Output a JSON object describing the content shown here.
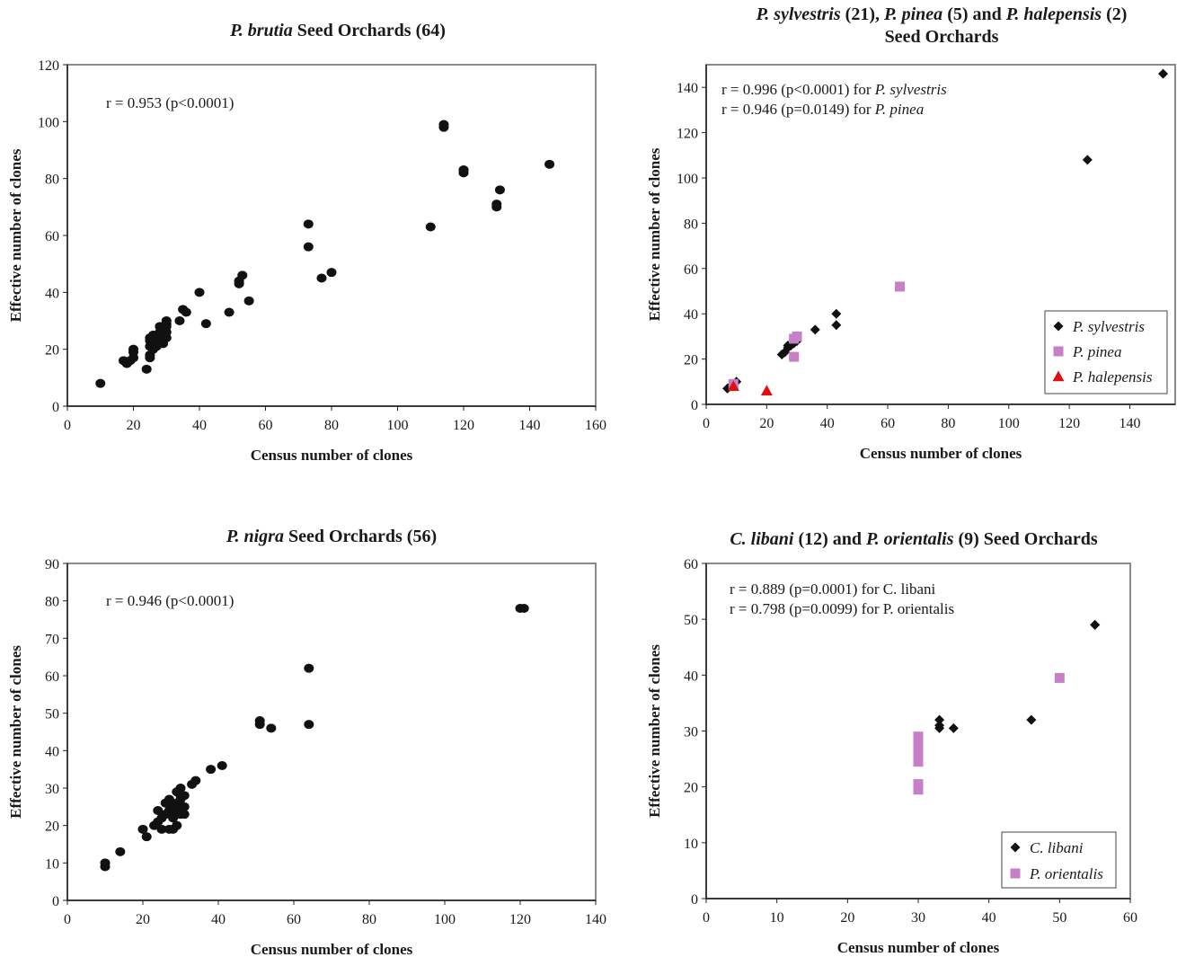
{
  "chart_data": [
    {
      "type": "scatter",
      "title_parts": [
        {
          "text": "P. brutia",
          "italic": true
        },
        {
          "text": "  Seed Orchards (64)",
          "italic": false
        }
      ],
      "xlabel": "Census number of clones",
      "ylabel": "Effective number of clones",
      "xlim": [
        0,
        160
      ],
      "ylim": [
        0,
        120
      ],
      "xticks": [
        0,
        20,
        40,
        60,
        80,
        100,
        120,
        140,
        160
      ],
      "yticks": [
        0,
        20,
        40,
        60,
        80,
        100,
        120
      ],
      "annotations": [
        [
          {
            "text": "r = 0.953 (p<0.0001)",
            "italic": false
          }
        ]
      ],
      "legend": null,
      "series": [
        {
          "marker": "circle",
          "color": "#111111",
          "x": [
            10,
            17,
            18,
            18,
            19,
            19,
            20,
            20,
            20,
            24,
            25,
            25,
            25,
            25,
            25,
            26,
            26,
            26,
            26,
            27,
            27,
            28,
            28,
            28,
            28,
            29,
            29,
            29,
            29,
            29,
            30,
            30,
            30,
            30,
            30,
            34,
            35,
            36,
            40,
            42,
            49,
            52,
            52,
            53,
            55,
            73,
            73,
            77,
            80,
            110,
            114,
            114,
            120,
            120,
            120,
            130,
            130,
            131,
            146
          ],
          "y": [
            8,
            16,
            15,
            15,
            16,
            16,
            17,
            19,
            20,
            13,
            17,
            18,
            21,
            23,
            24,
            20,
            22,
            24,
            25,
            21,
            23,
            22,
            24,
            26,
            28,
            22,
            23,
            25,
            27,
            28,
            24,
            26,
            28,
            29,
            30,
            30,
            34,
            33,
            40,
            29,
            33,
            43,
            44,
            46,
            37,
            64,
            56,
            45,
            47,
            63,
            98,
            99,
            83,
            82,
            83,
            71,
            70,
            76,
            85
          ]
        }
      ]
    },
    {
      "type": "scatter",
      "title_parts": [
        {
          "text": "P. sylvestris",
          "italic": true
        },
        {
          "text": " (21), ",
          "italic": false
        },
        {
          "text": "P. pinea",
          "italic": true
        },
        {
          "text": " (5) and ",
          "italic": false
        },
        {
          "text": "P. halepensis",
          "italic": true
        },
        {
          "text": " (2)",
          "italic": false
        }
      ],
      "title_line2": "Seed Orchards",
      "xlabel": "Census number of clones",
      "ylabel": "Effective number of clones",
      "xlim": [
        0,
        155
      ],
      "ylim": [
        0,
        150
      ],
      "xticks": [
        0,
        20,
        40,
        60,
        80,
        100,
        120,
        140
      ],
      "yticks": [
        0,
        20,
        40,
        60,
        80,
        100,
        120,
        140
      ],
      "annotations": [
        [
          {
            "text": "r = 0.996 (p<0.0001) for ",
            "italic": false
          },
          {
            "text": "P. sylvestris",
            "italic": true
          }
        ],
        [
          {
            "text": "r = 0.946 (p=0.0149) for ",
            "italic": false
          },
          {
            "text": "P. pinea",
            "italic": true
          }
        ]
      ],
      "legend": [
        {
          "label": "P. sylvestris",
          "marker": "diamond",
          "color": "#111111"
        },
        {
          "label": "P. pinea",
          "marker": "square",
          "color": "#c77fc7"
        },
        {
          "label": "P. halepensis",
          "marker": "triangle",
          "color": "#e01010"
        }
      ],
      "series": [
        {
          "name": "P. sylvestris",
          "marker": "diamond",
          "color": "#111111",
          "x": [
            7,
            8,
            9,
            10,
            25,
            26,
            27,
            27,
            28,
            29,
            30,
            36,
            43,
            43,
            126,
            151
          ],
          "y": [
            7,
            8,
            9,
            10,
            22,
            23,
            25,
            26,
            26,
            27,
            28,
            33,
            35,
            40,
            108,
            146
          ]
        },
        {
          "name": "P. pinea",
          "marker": "square",
          "color": "#c77fc7",
          "x": [
            9,
            29,
            29,
            30,
            64
          ],
          "y": [
            9,
            21,
            29,
            30,
            52
          ]
        },
        {
          "name": "P. halepensis",
          "marker": "triangle",
          "color": "#e01010",
          "x": [
            9,
            20
          ],
          "y": [
            8,
            6
          ]
        }
      ]
    },
    {
      "type": "scatter",
      "title_parts": [
        {
          "text": "P. nigra",
          "italic": true
        },
        {
          "text": "  Seed Orchards (56)",
          "italic": false
        }
      ],
      "xlabel": "Census number of clones",
      "ylabel": "Effective number of clones",
      "xlim": [
        0,
        140
      ],
      "ylim": [
        0,
        90
      ],
      "xticks": [
        0,
        20,
        40,
        60,
        80,
        100,
        120,
        140
      ],
      "yticks": [
        0,
        10,
        20,
        30,
        40,
        50,
        60,
        70,
        80,
        90
      ],
      "annotations": [
        [
          {
            "text": "r = 0.946 (p<0.0001)",
            "italic": false
          }
        ]
      ],
      "legend": null,
      "series": [
        {
          "marker": "circle",
          "color": "#111111",
          "x": [
            10,
            10,
            14,
            20,
            21,
            23,
            24,
            24,
            25,
            25,
            26,
            26,
            27,
            27,
            27,
            28,
            28,
            28,
            29,
            29,
            29,
            29,
            30,
            30,
            30,
            30,
            30,
            31,
            31,
            31,
            33,
            34,
            38,
            41,
            51,
            51,
            54,
            64,
            64,
            120,
            121
          ],
          "y": [
            9,
            10,
            13,
            19,
            17,
            20,
            21,
            24,
            19,
            22,
            23,
            26,
            19,
            24,
            27,
            19,
            22,
            25,
            20,
            23,
            26,
            29,
            23,
            25,
            27,
            28,
            30,
            23,
            25,
            28,
            31,
            32,
            35,
            36,
            47,
            48,
            46,
            47,
            62,
            78,
            78
          ]
        }
      ]
    },
    {
      "type": "scatter",
      "title_parts": [
        {
          "text": "C. libani",
          "italic": true
        },
        {
          "text": " (12) and ",
          "italic": false
        },
        {
          "text": "P. orientalis",
          "italic": true
        },
        {
          "text": " (9) Seed Orchards",
          "italic": false
        }
      ],
      "xlabel": "Census number of clones",
      "ylabel": "Effective number of clones",
      "xlim": [
        0,
        60
      ],
      "ylim": [
        0,
        60
      ],
      "xticks": [
        0,
        10,
        20,
        30,
        40,
        50,
        60
      ],
      "yticks": [
        0,
        10,
        20,
        30,
        40,
        50,
        60
      ],
      "annotations": [
        [
          {
            "text": "r = 0.889 (p=0.0001) for C. libani",
            "italic": false
          }
        ],
        [
          {
            "text": "r = 0.798 (p=0.0099) for P. orientalis",
            "italic": false
          }
        ]
      ],
      "legend": [
        {
          "label": "C. libani",
          "marker": "diamond",
          "color": "#111111"
        },
        {
          "label": "P. orientalis",
          "marker": "square",
          "color": "#c77fc7"
        }
      ],
      "series": [
        {
          "name": "C. libani",
          "marker": "diamond",
          "color": "#111111",
          "x": [
            30,
            30,
            30,
            30,
            30,
            33,
            33,
            33,
            35,
            46,
            55,
            55
          ],
          "y": [
            29,
            28,
            27,
            26,
            25,
            32,
            31,
            30.5,
            30.5,
            32,
            49,
            49
          ]
        },
        {
          "name": "P. orientalis",
          "marker": "square",
          "color": "#c77fc7",
          "x": [
            30,
            30,
            30,
            30,
            30,
            30,
            30,
            30,
            50
          ],
          "y": [
            29,
            28,
            27,
            26,
            24.5,
            20.5,
            20,
            19.5,
            39.5
          ]
        }
      ]
    }
  ]
}
